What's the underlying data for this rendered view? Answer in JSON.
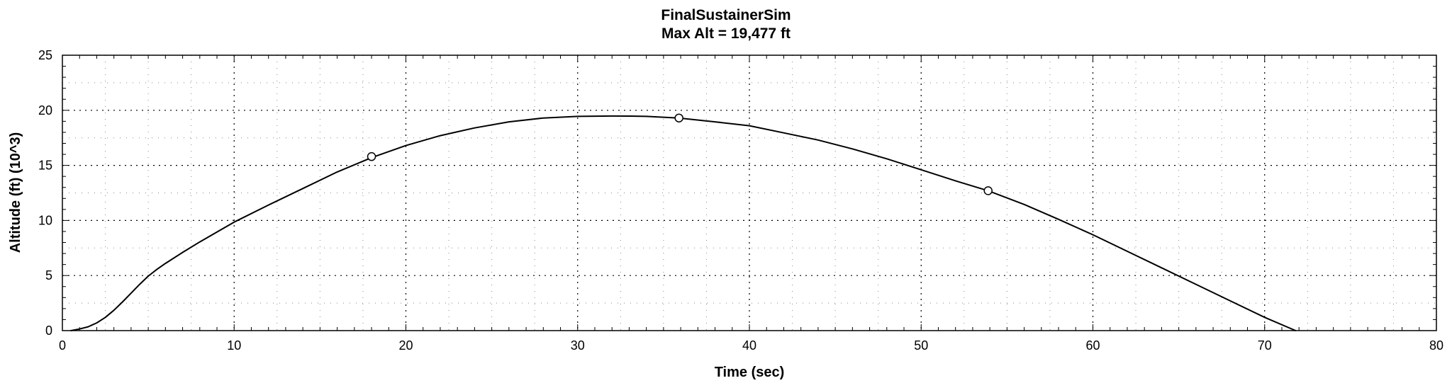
{
  "chart_data": {
    "type": "line",
    "title": "FinalSustainerSim",
    "subtitle": "Max Alt = 19,477 ft",
    "xlabel": "Time (sec)",
    "ylabel": "Altitude (ft) (10^3)",
    "xlim": [
      0,
      80
    ],
    "ylim": [
      0,
      25
    ],
    "x_ticks": [
      0,
      10,
      20,
      30,
      40,
      50,
      60,
      70,
      80
    ],
    "y_ticks": [
      0,
      5,
      10,
      15,
      20,
      25
    ],
    "x_tick_labels": [
      "0",
      "10",
      "20",
      "30",
      "40",
      "50",
      "60",
      "70",
      "80"
    ],
    "y_tick_labels": [
      "0",
      "5",
      "10",
      "15",
      "20",
      "25"
    ],
    "grid": true,
    "line_color": "#000000",
    "series": [
      {
        "x": [
          0.5,
          1,
          1.5,
          2,
          2.5,
          3,
          3.5,
          4,
          4.5,
          5,
          5.5,
          6,
          7,
          8,
          9,
          10,
          12,
          14,
          16,
          18,
          20,
          22,
          24,
          26,
          28,
          30,
          32,
          33,
          34,
          35.9,
          38,
          40,
          42,
          44,
          46,
          48,
          50,
          52,
          53.9,
          56,
          58,
          60,
          62,
          64,
          66,
          68,
          70,
          71.8
        ],
        "y": [
          0,
          0.15,
          0.35,
          0.7,
          1.2,
          1.85,
          2.6,
          3.4,
          4.2,
          4.95,
          5.55,
          6.1,
          7.1,
          8.05,
          8.95,
          9.85,
          11.4,
          12.9,
          14.4,
          15.7,
          16.8,
          17.7,
          18.4,
          18.95,
          19.3,
          19.45,
          19.48,
          19.47,
          19.45,
          19.3,
          18.95,
          18.6,
          17.95,
          17.3,
          16.5,
          15.6,
          14.6,
          13.6,
          12.7,
          11.45,
          10.1,
          8.7,
          7.2,
          5.7,
          4.2,
          2.7,
          1.2,
          0
        ]
      }
    ],
    "markers": {
      "x": [
        18,
        35.9,
        53.9
      ],
      "y": [
        15.8,
        19.3,
        12.7
      ]
    }
  }
}
